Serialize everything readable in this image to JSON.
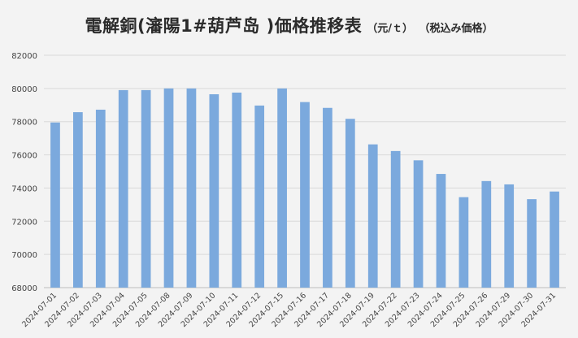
{
  "chart_data": {
    "type": "bar",
    "title": "電解銅(瀋陽1#葫芦岛 )価格推移表",
    "unit_label": "（元/ｔ）",
    "subtitle": "（税込み価格）",
    "xlabel": "",
    "ylabel": "",
    "ylim": [
      68000,
      82000
    ],
    "yticks": [
      68000,
      70000,
      72000,
      74000,
      76000,
      78000,
      80000,
      82000
    ],
    "tick_labels": [
      "68000",
      "70000",
      "72000",
      "74000",
      "76000",
      "78000",
      "80000",
      "82000"
    ],
    "grid": true,
    "legend": "none",
    "bar_color": "#7ba9dd",
    "categories": [
      "2024-07-01",
      "2024-07-02",
      "2024-07-03",
      "2024-07-04",
      "2024-07-05",
      "2024-07-08",
      "2024-07-09",
      "2024-07-10",
      "2024-07-11",
      "2024-07-12",
      "2024-07-15",
      "2024-07-16",
      "2024-07-17",
      "2024-07-18",
      "2024-07-19",
      "2024-07-22",
      "2024-07-23",
      "2024-07-24",
      "2024-07-25",
      "2024-07-26",
      "2024-07-29",
      "2024-07-30",
      "2024-07-31"
    ],
    "values": [
      77950,
      78570,
      78720,
      79900,
      79900,
      80000,
      80000,
      79650,
      79750,
      78970,
      80000,
      79180,
      78830,
      78170,
      76630,
      76230,
      75670,
      74850,
      73450,
      74420,
      74220,
      73330,
      73790
    ]
  }
}
